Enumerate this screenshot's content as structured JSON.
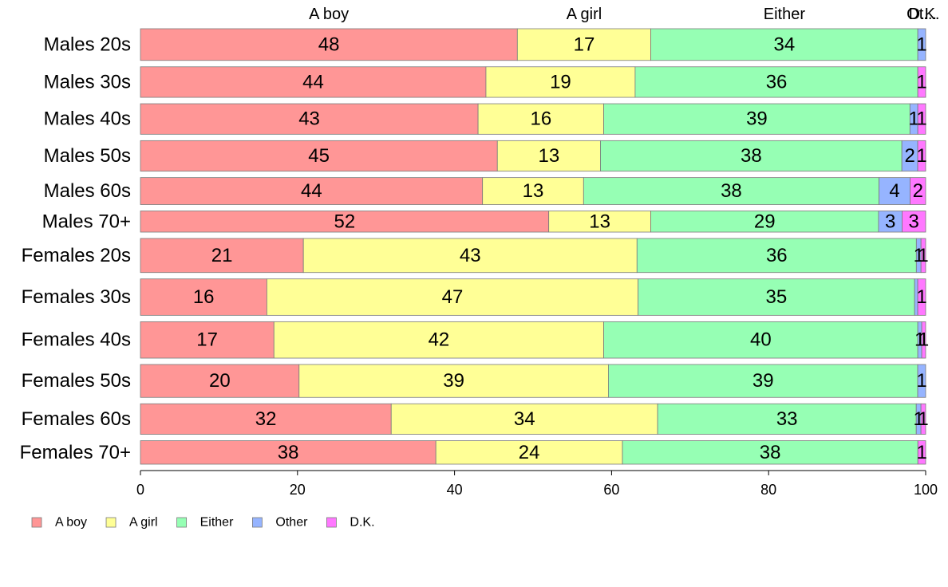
{
  "chart_data": {
    "type": "bar",
    "orientation": "horizontal",
    "stacked": true,
    "categories": [
      "Males 20s",
      "Males 30s",
      "Males 40s",
      "Males 50s",
      "Males 60s",
      "Males 70+",
      "Females 20s",
      "Females 30s",
      "Females 40s",
      "Females 50s",
      "Females 60s",
      "Females 70+"
    ],
    "series": [
      {
        "name": "A boy",
        "color": "#ff9696",
        "values": [
          48,
          44,
          43,
          45,
          44,
          52,
          21,
          16,
          17,
          20,
          32,
          38
        ],
        "labels": [
          "48",
          "44",
          "43",
          "45",
          "44",
          "52",
          "21",
          "16",
          "17",
          "20",
          "32",
          "38"
        ]
      },
      {
        "name": "A girl",
        "color": "#ffff96",
        "values": [
          17,
          19,
          16,
          13,
          13,
          13,
          43,
          47,
          42,
          39,
          34,
          24
        ],
        "labels": [
          "17",
          "19",
          "16",
          "13",
          "13",
          "13",
          "43",
          "47",
          "42",
          "39",
          "34",
          "24"
        ]
      },
      {
        "name": "Either",
        "color": "#96ffb4",
        "values": [
          34,
          36,
          39,
          38,
          38,
          29,
          36,
          35,
          40,
          39,
          33,
          38
        ],
        "labels": [
          "34",
          "36",
          "39",
          "38",
          "38",
          "29",
          "36",
          "35",
          "40",
          "39",
          "33",
          "38"
        ]
      },
      {
        "name": "Other",
        "color": "#96b4ff",
        "values": [
          1,
          0,
          1,
          2,
          4,
          3,
          0.6,
          0.4,
          0.5,
          1,
          0.6,
          0
        ],
        "labels": [
          "1",
          "",
          "1",
          "2",
          "4",
          "3",
          "1",
          "",
          "1",
          "1",
          "1",
          ""
        ]
      },
      {
        "name": "D.K.",
        "color": "#ff78ff",
        "values": [
          0,
          1,
          1,
          1,
          2,
          3,
          0.6,
          1,
          0.5,
          0,
          0.6,
          1
        ],
        "labels": [
          "",
          "1",
          "1",
          "1",
          "2",
          "3",
          "1",
          "1",
          "1",
          "",
          "1",
          "1"
        ]
      }
    ],
    "row_weights": [
      0.27,
      0.26,
      0.26,
      0.26,
      0.23,
      0.18,
      0.29,
      0.31,
      0.31,
      0.28,
      0.26,
      0.2
    ],
    "top_labels": [
      {
        "text": "A boy",
        "x": 24
      },
      {
        "text": "A girl",
        "x": 56.5
      },
      {
        "text": "Either",
        "x": 82
      },
      {
        "text": "Ot...",
        "x": 99.5
      },
      {
        "text": "D.K.",
        "x": 99.8
      }
    ],
    "xlim": [
      0,
      100
    ],
    "xticks": [
      "0",
      "20",
      "40",
      "60",
      "80",
      "100"
    ],
    "legend_position": "bottom-left",
    "grid": false
  }
}
